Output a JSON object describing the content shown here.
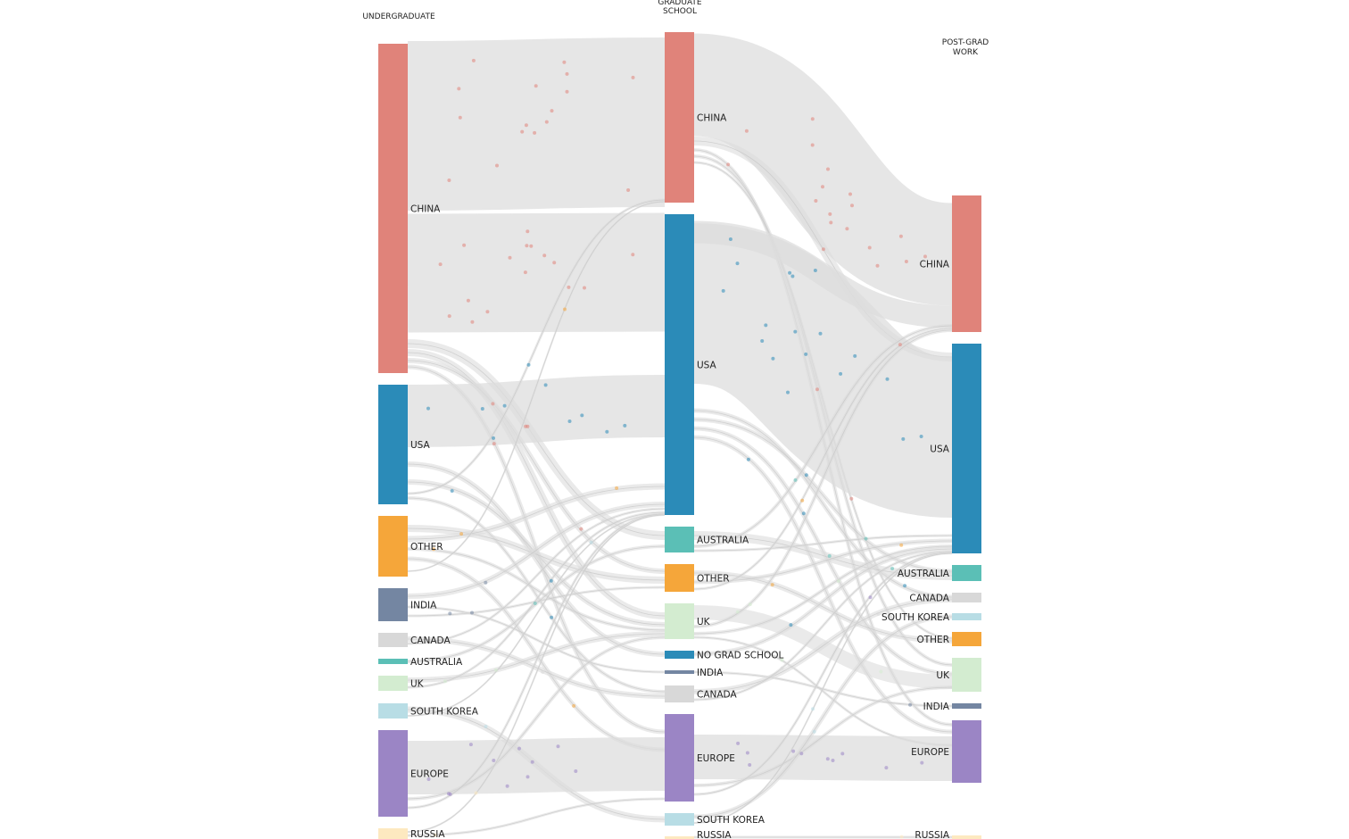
{
  "headers": {
    "undergraduate": "UNDERGRADUATE",
    "graduate_1": "GRADUATE",
    "graduate_2": "SCHOOL",
    "postgrad_1": "POST-GRAD",
    "postgrad_2": "WORK"
  },
  "colors": {
    "flow": "#dcdcdc",
    "china": "#e0837a",
    "usa": "#2b8bb8",
    "other": "#f5a63a",
    "india": "#7486a2",
    "canada": "#d8d8d8",
    "australia": "#5bbfb6",
    "uk": "#d3ecd0",
    "south_korea": "#b8dde5",
    "europe": "#9b85c5",
    "russia": "#fde9c0",
    "no_grad_school": "#2b8bb8"
  },
  "columns": {
    "undergraduate": [
      {
        "id": "china",
        "label": "CHINA",
        "color": "china"
      },
      {
        "id": "usa",
        "label": "USA",
        "color": "usa"
      },
      {
        "id": "other",
        "label": "OTHER",
        "color": "other"
      },
      {
        "id": "india",
        "label": "INDIA",
        "color": "india"
      },
      {
        "id": "canada",
        "label": "CANADA",
        "color": "canada"
      },
      {
        "id": "australia",
        "label": "AUSTRALIA",
        "color": "australia"
      },
      {
        "id": "uk",
        "label": "UK",
        "color": "uk"
      },
      {
        "id": "south_korea",
        "label": "SOUTH KOREA",
        "color": "south_korea"
      },
      {
        "id": "europe",
        "label": "EUROPE",
        "color": "europe"
      },
      {
        "id": "russia",
        "label": "RUSSIA",
        "color": "russia"
      }
    ],
    "graduate": [
      {
        "id": "china",
        "label": "CHINA",
        "color": "china"
      },
      {
        "id": "usa",
        "label": "USA",
        "color": "usa"
      },
      {
        "id": "australia",
        "label": "AUSTRALIA",
        "color": "australia"
      },
      {
        "id": "other",
        "label": "OTHER",
        "color": "other"
      },
      {
        "id": "uk",
        "label": "UK",
        "color": "uk"
      },
      {
        "id": "no_grad_school",
        "label": "NO GRAD SCHOOL",
        "color": "no_grad_school"
      },
      {
        "id": "india",
        "label": "INDIA",
        "color": "india"
      },
      {
        "id": "canada",
        "label": "CANADA",
        "color": "canada"
      },
      {
        "id": "europe",
        "label": "EUROPE",
        "color": "europe"
      },
      {
        "id": "south_korea",
        "label": "SOUTH KOREA",
        "color": "south_korea"
      },
      {
        "id": "russia",
        "label": "RUSSIA",
        "color": "russia"
      }
    ],
    "postgrad": [
      {
        "id": "china",
        "label": "CHINA",
        "color": "china"
      },
      {
        "id": "usa",
        "label": "USA",
        "color": "usa"
      },
      {
        "id": "australia",
        "label": "AUSTRALIA",
        "color": "australia"
      },
      {
        "id": "canada",
        "label": "CANADA",
        "color": "canada"
      },
      {
        "id": "south_korea",
        "label": "SOUTH KOREA",
        "color": "south_korea"
      },
      {
        "id": "other",
        "label": "OTHER",
        "color": "other"
      },
      {
        "id": "uk",
        "label": "UK",
        "color": "uk"
      },
      {
        "id": "india",
        "label": "INDIA",
        "color": "india"
      },
      {
        "id": "europe",
        "label": "EUROPE",
        "color": "europe"
      },
      {
        "id": "russia",
        "label": "RUSSIA",
        "color": "russia"
      }
    ]
  }
}
